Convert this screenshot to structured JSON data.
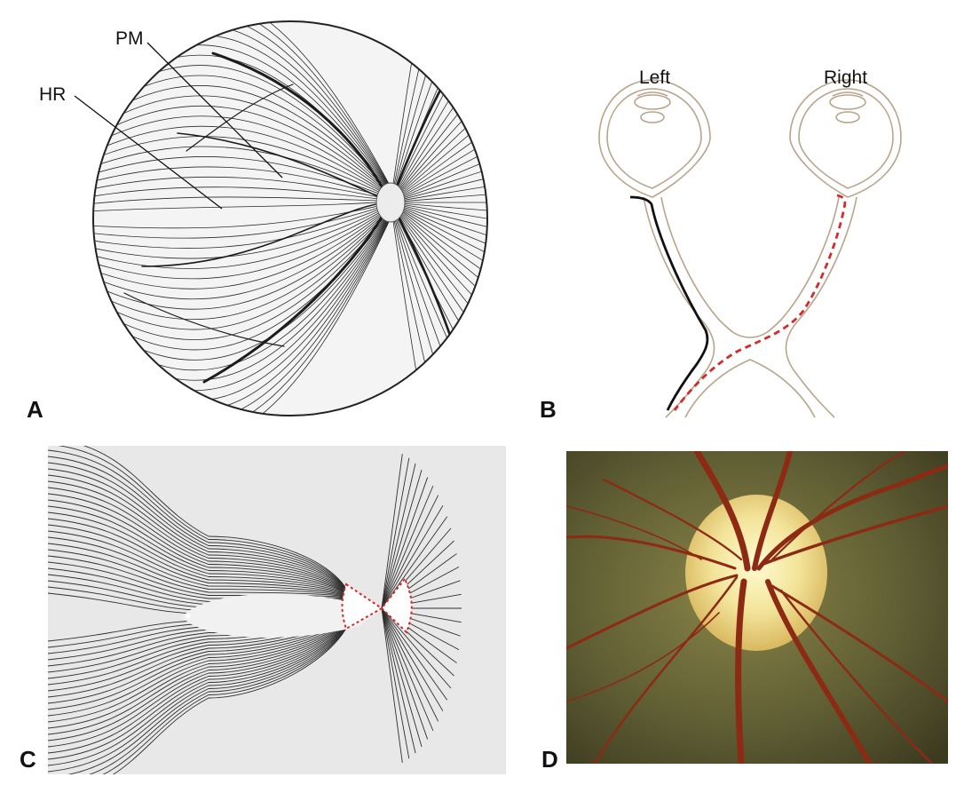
{
  "panels": {
    "a": {
      "letter": "A",
      "callouts": {
        "pm": "PM",
        "hr": "HR"
      }
    },
    "b": {
      "letter": "B",
      "eye_labels": {
        "left": "Left",
        "right": "Right"
      }
    },
    "c": {
      "letter": "C"
    },
    "d": {
      "letter": "D"
    }
  },
  "colors": {
    "ink": "#1a1a1a",
    "nerve_outline": "#b9a48c",
    "dashed_path": "#d42a2a",
    "fundus_bg": "#6b6a3c",
    "disc": "#f3e9a0",
    "vessel": "#8c2a14"
  }
}
